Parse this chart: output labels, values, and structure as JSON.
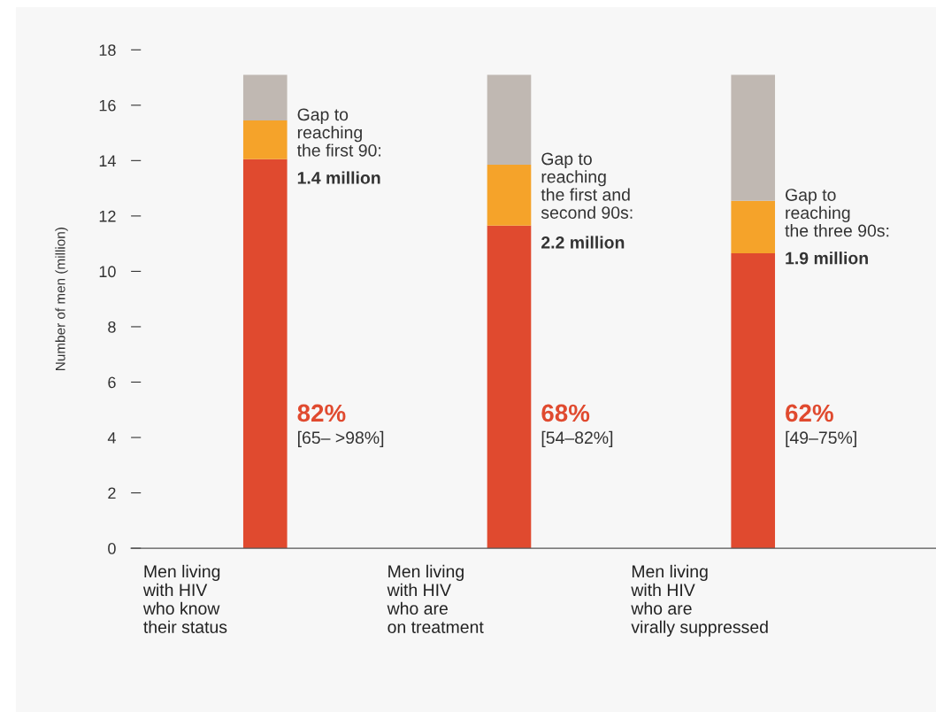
{
  "chart_data": {
    "type": "bar",
    "stacked": true,
    "ylabel": "Number of men (million)",
    "categories": [
      "Men living\nwith HIV\nwho know\ntheir status",
      "Men living\nwith HIV\nwho are\non treatment",
      "Men living\nwith HIV\nwho are\nvirally suppressed"
    ],
    "series": [
      {
        "color": "#e04a2f",
        "values": [
          14.05,
          11.65,
          10.65
        ]
      },
      {
        "color": "#f5a32a",
        "values": [
          1.4,
          2.2,
          1.9
        ]
      },
      {
        "color": "#c0b8b2",
        "values": [
          1.65,
          3.25,
          4.55
        ]
      }
    ],
    "ylim": [
      0,
      18
    ],
    "yticks": [
      0,
      2,
      4,
      6,
      8,
      10,
      12,
      14,
      16,
      18
    ],
    "grid": false,
    "legend": false,
    "annotations": [
      "Gap to\nreaching\nthe first 90:",
      "1.4 million",
      "82%",
      "[65– >98%]",
      "Gap to\nreaching\nthe first and\nsecond 90s:",
      "2.2 million",
      "68%",
      "[54–82%]",
      "Gap to\nreaching\nthe three 90s:",
      "1.9 million",
      "62%",
      "[49–75%]"
    ]
  }
}
